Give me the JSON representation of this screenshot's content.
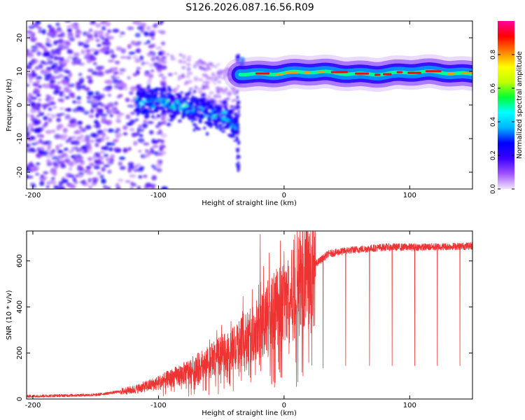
{
  "title": "S126.2026.087.16.56.R09",
  "chart_data": [
    {
      "type": "heatmap",
      "name": "spectrogram",
      "xlabel": "Height of straight line (km)",
      "ylabel": "Frequency (Hz)",
      "xlim": [
        -205,
        150
      ],
      "ylim": [
        -25,
        25
      ],
      "xticks": [
        -200,
        -100,
        0,
        100
      ],
      "yticks": [
        -20,
        -10,
        0,
        10,
        20
      ],
      "colorbar": {
        "label": "Normalized spectral amplitude",
        "range": [
          0,
          1
        ],
        "ticks": [
          0.0,
          0.2,
          0.4,
          0.6,
          0.8
        ],
        "tick_labels": [
          "0.0",
          "0.2",
          "0.4",
          "0.6",
          "0.8"
        ],
        "colors": [
          "#f2e6ff",
          "#a052ff",
          "#3a00ff",
          "#0000ff",
          "#00b4ff",
          "#00ffff",
          "#00ff33",
          "#bfff00",
          "#ffff00",
          "#ff7f00",
          "#ff0000",
          "#ff00a0"
        ]
      },
      "features": {
        "noise_region_x": [
          -205,
          -100
        ],
        "descending_band": {
          "x": [
            -115,
            -100,
            -85,
            -70,
            -60,
            -50,
            -40
          ],
          "freq": [
            0.5,
            1.0,
            0.0,
            -1.5,
            -2.5,
            -3.0,
            -6.0
          ]
        },
        "transition_x": -37,
        "steady_line": {
          "x_start": -35,
          "x_end": 150,
          "freq": 9.5
        },
        "peak_amplitude": 0.95
      }
    },
    {
      "type": "line",
      "name": "snr",
      "xlabel": "Height of straight line (km)",
      "ylabel": "SNR (10 * v/v)",
      "xlim": [
        -205,
        150
      ],
      "ylim": [
        0,
        730
      ],
      "xticks": [
        -200,
        -100,
        0,
        100
      ],
      "yticks": [
        0,
        200,
        400,
        600
      ],
      "color": "#ee3333",
      "profile_x": [
        -205,
        -150,
        -120,
        -100,
        -80,
        -60,
        -40,
        -25,
        -15,
        -5,
        5,
        15,
        25,
        35,
        50,
        80,
        110,
        150
      ],
      "profile_y": [
        12,
        18,
        40,
        70,
        110,
        160,
        220,
        280,
        350,
        400,
        440,
        520,
        585,
        630,
        645,
        660,
        660,
        665
      ],
      "spike_max": {
        "x": -19,
        "y": 715
      },
      "dropouts": [
        {
          "x": 11,
          "y": 75
        },
        {
          "x": 31,
          "y": 135
        },
        {
          "x": 49,
          "y": 145
        },
        {
          "x": 68,
          "y": 145
        },
        {
          "x": 86,
          "y": 145
        },
        {
          "x": 104,
          "y": 145
        },
        {
          "x": 122,
          "y": 145
        },
        {
          "x": 140,
          "y": 145
        }
      ]
    }
  ]
}
